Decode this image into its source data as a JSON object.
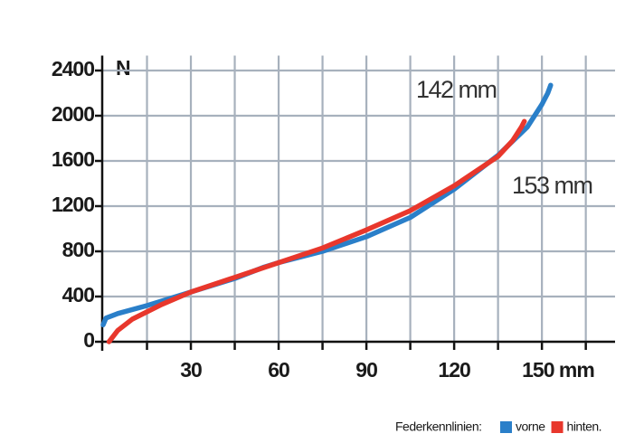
{
  "chart_data": {
    "type": "line",
    "y_label": "N",
    "xlim": [
      0,
      175
    ],
    "ylim": [
      0,
      2500
    ],
    "xticks": [
      30,
      60,
      90,
      120,
      {
        "value": 150,
        "label": "150 mm"
      }
    ],
    "xminor": [
      15,
      45,
      75,
      105,
      135,
      165
    ],
    "yticks": [
      0,
      400,
      800,
      1200,
      1600,
      2000,
      2400
    ],
    "grid": true,
    "legend_title": "Federkennlinien:",
    "series": [
      {
        "name": "vorne",
        "color": "#2a7fc9",
        "x": [
          0,
          1,
          5,
          15,
          30,
          45,
          55,
          60,
          75,
          90,
          105,
          120,
          135,
          145,
          150,
          152,
          153
        ],
        "values": [
          150,
          210,
          250,
          320,
          440,
          560,
          660,
          700,
          800,
          930,
          1100,
          1350,
          1650,
          1900,
          2100,
          2200,
          2270
        ]
      },
      {
        "name": "hinten.",
        "color": "#e8372c",
        "x": [
          2,
          5,
          10,
          20,
          30,
          45,
          60,
          75,
          90,
          105,
          120,
          135,
          140,
          143,
          144
        ],
        "values": [
          0,
          100,
          200,
          330,
          440,
          570,
          700,
          830,
          990,
          1160,
          1380,
          1640,
          1780,
          1900,
          1950
        ]
      }
    ],
    "annotations": [
      "142 mm",
      "153 mm"
    ]
  }
}
